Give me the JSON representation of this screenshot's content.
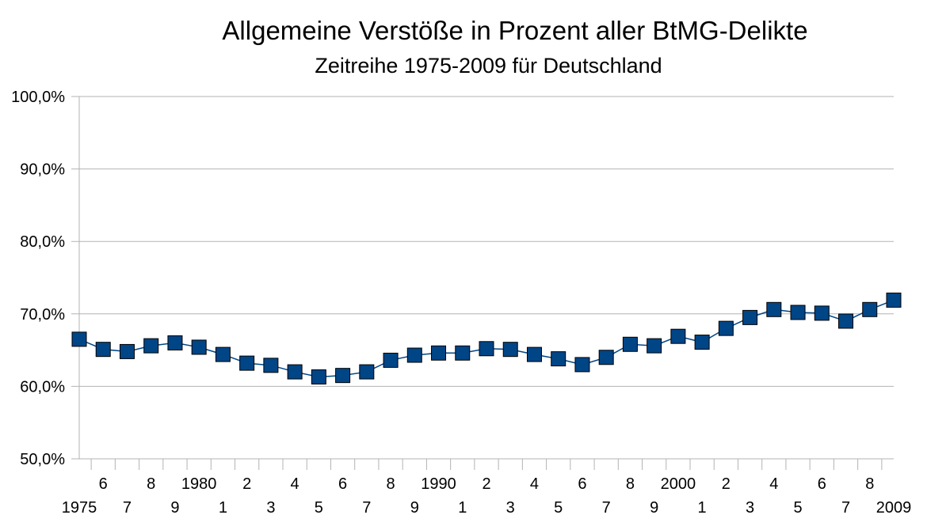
{
  "chart_data": {
    "type": "line",
    "title": "Allgemeine Verstöße in Prozent aller BtMG-Delikte",
    "subtitle": "Zeitreihe 1975-2009 für Deutschland",
    "xlabel": "",
    "ylabel": "",
    "ylim": [
      50,
      100
    ],
    "yticks": [
      "50,0%",
      "60,0%",
      "70,0%",
      "80,0%",
      "90,0%",
      "100,0%"
    ],
    "x": [
      1975,
      1976,
      1977,
      1978,
      1979,
      1980,
      1981,
      1982,
      1983,
      1984,
      1985,
      1986,
      1987,
      1988,
      1989,
      1990,
      1991,
      1992,
      1993,
      1994,
      1995,
      1996,
      1997,
      1998,
      1999,
      2000,
      2001,
      2002,
      2003,
      2004,
      2005,
      2006,
      2007,
      2008,
      2009
    ],
    "xtick_labels": [
      "1975",
      "6",
      "7",
      "8",
      "9",
      "1980",
      "1",
      "2",
      "3",
      "4",
      "5",
      "6",
      "7",
      "8",
      "9",
      "1990",
      "1",
      "2",
      "3",
      "4",
      "5",
      "6",
      "7",
      "8",
      "9",
      "2000",
      "1",
      "2",
      "3",
      "4",
      "5",
      "6",
      "7",
      "8",
      "2009"
    ],
    "series": [
      {
        "values": [
          66.5,
          65.1,
          64.8,
          65.6,
          66.0,
          65.4,
          64.4,
          63.2,
          62.9,
          62.0,
          61.3,
          61.5,
          62.0,
          63.6,
          64.3,
          64.6,
          64.6,
          65.2,
          65.1,
          64.4,
          63.8,
          63.0,
          64.0,
          65.8,
          65.6,
          66.9,
          66.1,
          68.0,
          69.5,
          70.6,
          70.2,
          70.1,
          69.0,
          70.6,
          71.9
        ],
        "color": "#004586",
        "marker": "square"
      }
    ],
    "grid": true,
    "legend": "none"
  }
}
